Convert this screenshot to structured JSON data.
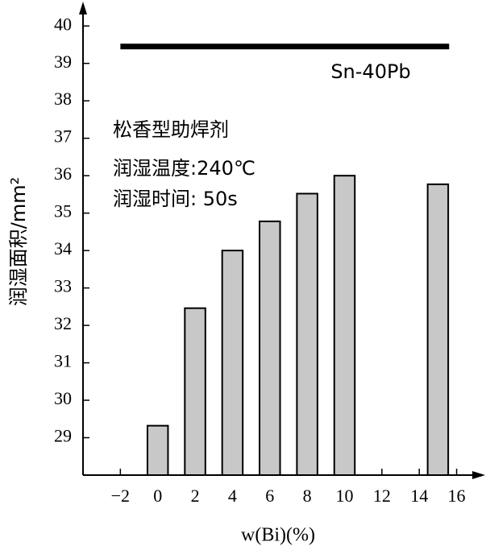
{
  "chart_data": {
    "type": "bar",
    "x": [
      0,
      2,
      4,
      6,
      8,
      10,
      15
    ],
    "values": [
      29.32,
      32.46,
      34.0,
      34.78,
      35.52,
      36.0,
      35.77
    ],
    "color": "#c8c8c8",
    "reference_line": {
      "name": "Sn-40Pb",
      "x": [
        -2,
        15.6
      ],
      "values": [
        39.45,
        39.45
      ],
      "color": "#000000"
    },
    "annotations": [
      "松香型助焊剂",
      "润湿温度:240℃",
      "润湿时间: 50s"
    ],
    "ylabel": "润湿面积/mm²",
    "xlabel": "w(Bi)(%)",
    "xlim": [
      -4,
      17.4
    ],
    "ylim": [
      28,
      40.5
    ],
    "xticks": [
      {
        "value": -2,
        "label": "−2"
      },
      0,
      2,
      4,
      6,
      8,
      10,
      12,
      14,
      16
    ],
    "yticks": [
      29,
      30,
      31,
      32,
      33,
      34,
      35,
      36,
      37,
      38,
      39,
      40
    ],
    "grid": false
  }
}
